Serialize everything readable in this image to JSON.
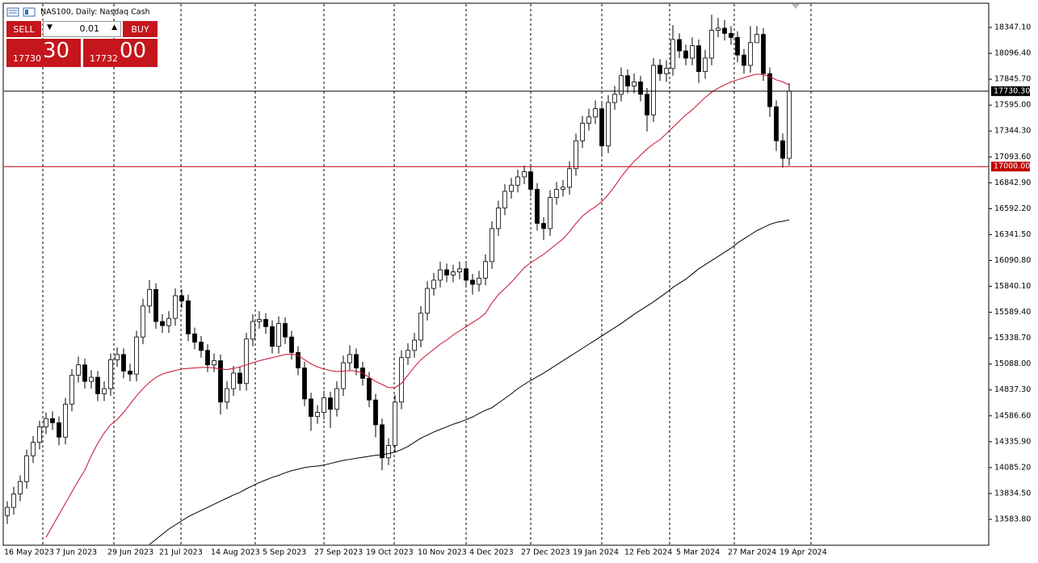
{
  "chart_data": {
    "type": "candlestick",
    "title": "NAS100, Daily:  Nasdaq Cash",
    "categories": [
      "16 May 2023",
      null,
      null,
      null,
      null,
      null,
      null,
      null,
      "7 Jun 2023",
      null,
      null,
      null,
      null,
      null,
      null,
      null,
      "29 Jun 2023",
      null,
      null,
      null,
      null,
      null,
      null,
      null,
      "21 Jul 2023",
      null,
      null,
      null,
      null,
      null,
      null,
      null,
      "14 Aug 2023",
      null,
      null,
      null,
      null,
      null,
      null,
      null,
      "5 Sep 2023",
      null,
      null,
      null,
      null,
      null,
      null,
      null,
      "27 Sep 2023",
      null,
      null,
      null,
      null,
      null,
      null,
      null,
      "19 Oct 2023",
      null,
      null,
      null,
      null,
      null,
      null,
      null,
      "10 Nov 2023",
      null,
      null,
      null,
      null,
      null,
      null,
      null,
      "4 Dec 2023",
      null,
      null,
      null,
      null,
      null,
      null,
      null,
      "27 Dec 2023",
      null,
      null,
      null,
      null,
      null,
      null,
      null,
      "19 Jan 2024",
      null,
      null,
      null,
      null,
      null,
      null,
      null,
      "12 Feb 2024",
      null,
      null,
      null,
      null,
      null,
      null,
      null,
      "5 Mar 2024",
      null,
      null,
      null,
      null,
      null,
      null,
      null,
      "27 Mar 2024",
      null,
      null,
      null,
      null,
      null,
      null,
      null,
      "19 Apr 2024",
      null
    ],
    "open": [
      13620,
      13700,
      13830,
      13950,
      14200,
      14330,
      14480,
      14560,
      14520,
      14380,
      14700,
      14980,
      15080,
      14920,
      14960,
      14800,
      14850,
      15130,
      15180,
      15020,
      14990,
      15350,
      15650,
      15810,
      15500,
      15460,
      15530,
      15750,
      15700,
      15380,
      15300,
      15220,
      15080,
      15120,
      14720,
      14850,
      15000,
      14900,
      15330,
      15500,
      15520,
      15450,
      15260,
      15480,
      15350,
      15200,
      15050,
      14750,
      14580,
      14620,
      14760,
      14650,
      14850,
      15100,
      15180,
      15050,
      14950,
      14740,
      14500,
      14180,
      14300,
      14720,
      15150,
      15220,
      15320,
      15580,
      15820,
      15900,
      16000,
      15950,
      15980,
      16010,
      15900,
      15860,
      15920,
      16080,
      16400,
      16600,
      16760,
      16820,
      16900,
      16950,
      16780,
      16450,
      16400,
      16700,
      16780,
      16800,
      16980,
      17250,
      17420,
      17480,
      17560,
      17200,
      17620,
      17700,
      17880,
      17780,
      17820,
      17700,
      17500,
      17980,
      17900,
      17950,
      18230,
      18120,
      18050,
      18170,
      17920,
      18050,
      18320,
      18340,
      18290,
      18250,
      18080,
      17980,
      18200,
      18280,
      17900,
      17580,
      17250,
      17080
    ],
    "high": [
      13760,
      13900,
      14010,
      14260,
      14390,
      14540,
      14620,
      14630,
      14580,
      14760,
      15040,
      15160,
      15140,
      15030,
      15020,
      14920,
      15190,
      15250,
      15240,
      15090,
      15410,
      15720,
      15900,
      15870,
      15570,
      15600,
      15820,
      15810,
      15760,
      15440,
      15360,
      15280,
      15190,
      15180,
      14920,
      15070,
      15060,
      15390,
      15570,
      15600,
      15580,
      15510,
      15550,
      15540,
      15410,
      15260,
      15110,
      14810,
      14690,
      14830,
      14820,
      14920,
      15170,
      15270,
      15240,
      15110,
      15010,
      14800,
      14560,
      14370,
      14790,
      15220,
      15290,
      15390,
      15650,
      15890,
      15970,
      16080,
      16060,
      16050,
      16080,
      16070,
      15960,
      15990,
      16150,
      16470,
      16670,
      16830,
      16890,
      16970,
      17010,
      17010,
      16840,
      16510,
      16770,
      16850,
      16870,
      17050,
      17320,
      17490,
      17560,
      17640,
      17620,
      17690,
      17780,
      17960,
      17940,
      17900,
      17880,
      17760,
      18050,
      18040,
      18030,
      18370,
      18290,
      18180,
      18250,
      18230,
      18130,
      18470,
      18440,
      18420,
      18360,
      18310,
      18140,
      18360,
      18360,
      18340,
      17960,
      17640,
      17320,
      17810
    ],
    "low": [
      13540,
      13630,
      13760,
      13880,
      14130,
      14260,
      14410,
      14450,
      14300,
      14310,
      14630,
      14910,
      14850,
      14850,
      14730,
      14730,
      14780,
      15060,
      14950,
      14920,
      14920,
      15280,
      15580,
      15430,
      15390,
      15390,
      15460,
      15630,
      15310,
      15230,
      15150,
      15010,
      15010,
      14600,
      14650,
      14780,
      14830,
      14830,
      15260,
      15430,
      15380,
      15190,
      15190,
      15280,
      15130,
      14980,
      14680,
      14440,
      14510,
      14550,
      14470,
      14580,
      14780,
      15030,
      14980,
      14880,
      14670,
      14380,
      14060,
      14110,
      14230,
      14650,
      15080,
      15150,
      15250,
      15510,
      15750,
      15830,
      15880,
      15880,
      15910,
      15830,
      15760,
      15790,
      15850,
      16010,
      16330,
      16530,
      16690,
      16750,
      16830,
      16710,
      16380,
      16290,
      16330,
      16630,
      16710,
      16730,
      16910,
      17180,
      17350,
      17410,
      17100,
      17130,
      17550,
      17630,
      17710,
      17710,
      17630,
      17340,
      17430,
      17830,
      17820,
      17880,
      18050,
      17980,
      17980,
      17810,
      17850,
      17980,
      18250,
      18220,
      18180,
      18010,
      17900,
      17910,
      18210,
      17830,
      17480,
      17150,
      16990,
      17010
    ],
    "close": [
      13700,
      13830,
      13950,
      14200,
      14330,
      14480,
      14560,
      14520,
      14380,
      14700,
      14980,
      15080,
      14920,
      14960,
      14800,
      14850,
      15130,
      15180,
      15020,
      14990,
      15350,
      15650,
      15810,
      15500,
      15460,
      15530,
      15750,
      15700,
      15380,
      15300,
      15220,
      15080,
      15120,
      14720,
      14850,
      15000,
      14900,
      15330,
      15500,
      15520,
      15450,
      15260,
      15480,
      15350,
      15200,
      15050,
      14750,
      14580,
      14620,
      14760,
      14650,
      14850,
      15100,
      15180,
      15050,
      14950,
      14740,
      14500,
      14180,
      14300,
      14720,
      15150,
      15220,
      15320,
      15580,
      15820,
      15900,
      16000,
      15950,
      15980,
      16010,
      15900,
      15860,
      15920,
      16080,
      16400,
      16600,
      16760,
      16820,
      16900,
      16950,
      16780,
      16450,
      16400,
      16700,
      16780,
      16800,
      16980,
      17250,
      17420,
      17480,
      17560,
      17200,
      17620,
      17700,
      17880,
      17780,
      17820,
      17700,
      17500,
      17980,
      17900,
      17950,
      18230,
      18120,
      18050,
      18170,
      17920,
      18050,
      18320,
      18340,
      18290,
      18250,
      18080,
      17980,
      18200,
      18280,
      17900,
      17580,
      17250,
      17080,
      17730.3
    ],
    "overlays": [
      {
        "color": "#c8102e",
        "values": [
          null,
          null,
          null,
          null,
          null,
          null,
          13410,
          13520,
          13630,
          13740,
          13850,
          13960,
          14060,
          14200,
          14320,
          14420,
          14500,
          14550,
          14620,
          14700,
          14780,
          14850,
          14910,
          14960,
          14990,
          15010,
          15025,
          15040,
          15045,
          15050,
          15055,
          15055,
          15050,
          15040,
          15035,
          15045,
          15060,
          15080,
          15100,
          15120,
          15135,
          15150,
          15165,
          15180,
          15185,
          15170,
          15130,
          15090,
          15060,
          15040,
          15025,
          15015,
          15020,
          15025,
          15020,
          15000,
          14960,
          14920,
          14890,
          14860,
          14860,
          14900,
          14980,
          15060,
          15130,
          15180,
          15230,
          15280,
          15320,
          15370,
          15410,
          15450,
          15490,
          15530,
          15580,
          15680,
          15760,
          15820,
          15880,
          15950,
          16020,
          16070,
          16110,
          16150,
          16200,
          16250,
          16300,
          16370,
          16450,
          16520,
          16570,
          16610,
          16660,
          16730,
          16810,
          16900,
          16980,
          17050,
          17110,
          17170,
          17220,
          17260,
          17320,
          17380,
          17440,
          17500,
          17550,
          17610,
          17670,
          17720,
          17760,
          17790,
          17820,
          17840,
          17860,
          17880,
          17895,
          17890,
          17870,
          17840,
          17820,
          17790
        ]
      },
      {
        "color": "#000000",
        "values": [
          null,
          null,
          null,
          null,
          null,
          null,
          null,
          null,
          null,
          null,
          null,
          null,
          null,
          null,
          null,
          null,
          null,
          null,
          null,
          null,
          null,
          null,
          13340,
          13390,
          13440,
          13490,
          13530,
          13570,
          13610,
          13640,
          13670,
          13700,
          13730,
          13760,
          13790,
          13820,
          13845,
          13880,
          13910,
          13940,
          13965,
          13990,
          14010,
          14035,
          14055,
          14070,
          14085,
          14095,
          14100,
          14110,
          14125,
          14140,
          14155,
          14165,
          14175,
          14185,
          14195,
          14205,
          14210,
          14220,
          14235,
          14260,
          14290,
          14330,
          14370,
          14400,
          14430,
          14455,
          14480,
          14505,
          14525,
          14550,
          14575,
          14610,
          14640,
          14665,
          14710,
          14755,
          14800,
          14850,
          14890,
          14930,
          14965,
          15000,
          15040,
          15080,
          15120,
          15160,
          15200,
          15240,
          15280,
          15320,
          15360,
          15400,
          15440,
          15480,
          15525,
          15570,
          15610,
          15650,
          15690,
          15735,
          15780,
          15830,
          15870,
          15910,
          15960,
          16010,
          16050,
          16090,
          16130,
          16170,
          16210,
          16260,
          16300,
          16340,
          16380,
          16410,
          16440,
          16460,
          16470,
          16485
        ]
      }
    ],
    "hlines": [
      {
        "value": 17730.3,
        "label": "17730.30",
        "color": "#000000"
      },
      {
        "value": 17000,
        "label": "17000.00",
        "color": "#c00000"
      }
    ],
    "ylim": [
      13333.5,
      18573.9
    ],
    "yticks": [
      {
        "value": 18347.1,
        "label": "18347.10"
      },
      {
        "value": 18096.4,
        "label": "18096.40"
      },
      {
        "value": 17845.7,
        "label": "17845.70"
      },
      {
        "value": 17595,
        "label": "17595.00"
      },
      {
        "value": 17344.3,
        "label": "17344.30"
      },
      {
        "value": 17093.6,
        "label": "17093.60"
      },
      {
        "value": 16842.9,
        "label": "16842.90"
      },
      {
        "value": 16592.2,
        "label": "16592.20"
      },
      {
        "value": 16341.5,
        "label": "16341.50"
      },
      {
        "value": 16090.8,
        "label": "16090.80"
      },
      {
        "value": 15840.1,
        "label": "15840.10"
      },
      {
        "value": 15589.4,
        "label": "15589.40"
      },
      {
        "value": 15338.7,
        "label": "15338.70"
      },
      {
        "value": 15088,
        "label": "15088.00"
      },
      {
        "value": 14837.3,
        "label": "14837.30"
      },
      {
        "value": 14586.6,
        "label": "14586.60"
      },
      {
        "value": 14335.9,
        "label": "14335.90"
      },
      {
        "value": 14085.2,
        "label": "14085.20"
      },
      {
        "value": 13834.5,
        "label": "13834.50"
      },
      {
        "value": 13583.8,
        "label": "13583.80"
      }
    ],
    "bull_color": "#ffffff",
    "bear_color": "#000000"
  },
  "trade_panel": {
    "sell": "SELL",
    "buy": "BUY",
    "lot": "0.01",
    "bid_main": "17730",
    "bid_pips": "30",
    "ask_main": "17732",
    "ask_pips": "00"
  }
}
